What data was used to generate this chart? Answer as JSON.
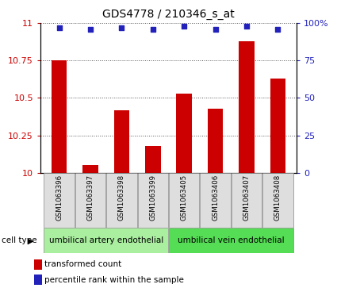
{
  "title": "GDS4778 / 210346_s_at",
  "samples": [
    "GSM1063396",
    "GSM1063397",
    "GSM1063398",
    "GSM1063399",
    "GSM1063405",
    "GSM1063406",
    "GSM1063407",
    "GSM1063408"
  ],
  "transformed_counts": [
    10.75,
    10.05,
    10.42,
    10.18,
    10.53,
    10.43,
    10.88,
    10.63
  ],
  "percentile_ranks": [
    97,
    96,
    97,
    96,
    98,
    96,
    98,
    96
  ],
  "percentile_scale": 100,
  "y_min": 10.0,
  "y_max": 11.0,
  "y_ticks": [
    10.0,
    10.25,
    10.5,
    10.75,
    11.0
  ],
  "y_tick_labels": [
    "10",
    "10.25",
    "10.5",
    "10.75",
    "11"
  ],
  "right_y_ticks": [
    0,
    25,
    50,
    75,
    100
  ],
  "right_y_tick_labels": [
    "0",
    "25",
    "50",
    "75",
    "100%"
  ],
  "bar_color": "#CC0000",
  "dot_color": "#2222BB",
  "cell_type_groups": [
    {
      "label": "umbilical artery endothelial",
      "samples": [
        0,
        1,
        2,
        3
      ],
      "color": "#AAEEA0"
    },
    {
      "label": "umbilical vein endothelial",
      "samples": [
        4,
        5,
        6,
        7
      ],
      "color": "#55DD55"
    }
  ],
  "legend_bar_label": "transformed count",
  "legend_dot_label": "percentile rank within the sample",
  "cell_type_label": "cell type",
  "tick_color_left": "#CC0000",
  "tick_color_right": "#2222BB",
  "grid_color": "#555555",
  "background_color": "#DEDEDE",
  "fig_width": 4.25,
  "fig_height": 3.63,
  "bar_width": 0.5
}
